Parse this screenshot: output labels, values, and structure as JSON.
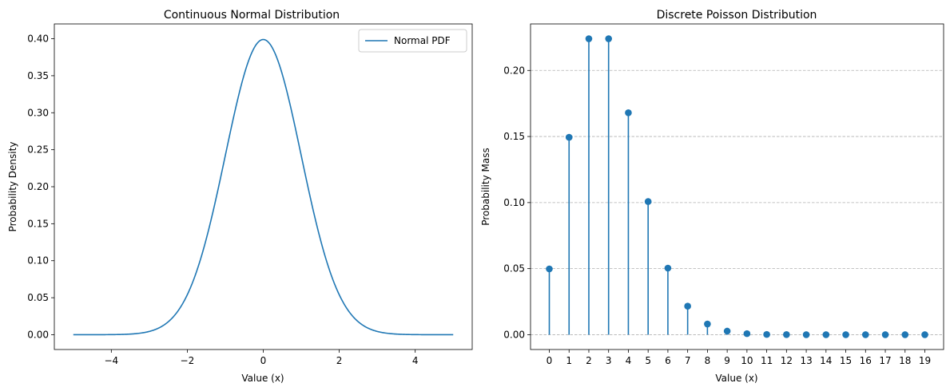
{
  "chart_data": [
    {
      "type": "line",
      "title": "Continuous Normal Distribution",
      "xlabel": "Value (x)",
      "ylabel": "Probability Density",
      "xlim": [
        -5.5,
        5.5
      ],
      "ylim": [
        -0.02,
        0.42
      ],
      "xticks": [
        "−4",
        "−2",
        "0",
        "2",
        "4"
      ],
      "xtick_values": [
        -4,
        -2,
        0,
        2,
        4
      ],
      "yticks": [
        "0.00",
        "0.05",
        "0.10",
        "0.15",
        "0.20",
        "0.25",
        "0.30",
        "0.35",
        "0.40"
      ],
      "ytick_values": [
        0,
        0.05,
        0.1,
        0.15,
        0.2,
        0.25,
        0.3,
        0.35,
        0.4
      ],
      "grid": false,
      "legend_position": "top-right",
      "series": [
        {
          "name": "Normal PDF",
          "function": "normal_pdf",
          "mean": 0,
          "std": 1,
          "x_range": [
            -5,
            5
          ],
          "color": "#1f77b4"
        }
      ]
    },
    {
      "type": "stem",
      "title": "Discrete Poisson Distribution",
      "xlabel": "Value (x)",
      "ylabel": "Probability Mass",
      "xlim": [
        -0.95,
        19.95
      ],
      "ylim": [
        -0.0112,
        0.2352
      ],
      "categories": [
        0,
        1,
        2,
        3,
        4,
        5,
        6,
        7,
        8,
        9,
        10,
        11,
        12,
        13,
        14,
        15,
        16,
        17,
        18,
        19
      ],
      "xticks": [
        "0",
        "1",
        "2",
        "3",
        "4",
        "5",
        "6",
        "7",
        "8",
        "9",
        "10",
        "11",
        "12",
        "13",
        "14",
        "15",
        "16",
        "17",
        "18",
        "19"
      ],
      "yticks": [
        "0.00",
        "0.05",
        "0.10",
        "0.15",
        "0.20"
      ],
      "ytick_values": [
        0,
        0.05,
        0.1,
        0.15,
        0.2
      ],
      "grid": "y-dashed",
      "values": [
        0.0498,
        0.1494,
        0.224,
        0.224,
        0.168,
        0.1008,
        0.0504,
        0.0216,
        0.0081,
        0.0027,
        0.0008,
        0.0002,
        0.0001,
        0.0,
        0.0,
        0.0,
        0.0,
        0.0,
        0.0,
        0.0
      ],
      "color": "#1f77b4"
    }
  ]
}
